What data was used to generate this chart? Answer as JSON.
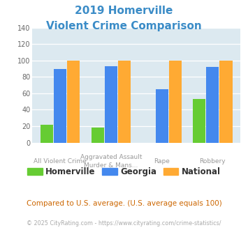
{
  "title_line1": "2019 Homerville",
  "title_line2": "Violent Crime Comparison",
  "title_color": "#3b8cc7",
  "homerville": [
    22,
    18,
    0,
    53
  ],
  "georgia": [
    90,
    93,
    65,
    92
  ],
  "national": [
    100,
    100,
    100,
    100
  ],
  "homerville_color": "#66cc33",
  "georgia_color": "#4488ee",
  "national_color": "#ffaa33",
  "ylim": [
    0,
    140
  ],
  "yticks": [
    0,
    20,
    40,
    60,
    80,
    100,
    120,
    140
  ],
  "plot_bg": "#dce9f0",
  "top_labels": [
    "",
    "Aggravated Assault",
    "Rape",
    ""
  ],
  "bot_labels": [
    "All Violent Crime",
    "Murder & Mans...",
    "",
    "Robbery"
  ],
  "footer_text": "Compared to U.S. average. (U.S. average equals 100)",
  "footer_color": "#cc6600",
  "credit_text": "© 2025 CityRating.com - https://www.cityrating.com/crime-statistics/",
  "credit_color": "#aaaaaa",
  "legend_labels": [
    "Homerville",
    "Georgia",
    "National"
  ],
  "bar_width": 0.25
}
